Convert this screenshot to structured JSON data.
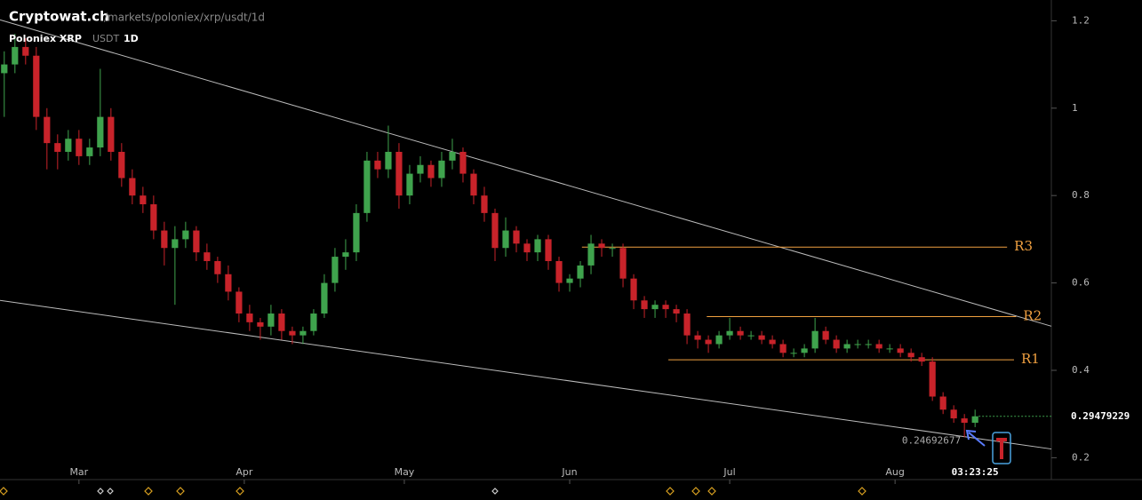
{
  "header": {
    "site": "Cryptowat.ch",
    "path": "/markets/poloniex/xrp/usdt/1d",
    "exchange_pair": "Poloniex XRP",
    "quote": "USDT",
    "period": "1D"
  },
  "chart_data": {
    "type": "candlestick",
    "x": [
      -14,
      -12,
      -10,
      -8,
      -6,
      -4,
      -2,
      0,
      2,
      4,
      6,
      8,
      10,
      12,
      14,
      16,
      18,
      20,
      22,
      24,
      26,
      28,
      30,
      32,
      34,
      36,
      38,
      40,
      42,
      44,
      46,
      48,
      50,
      52,
      54,
      56,
      58,
      60,
      62,
      64,
      66,
      68,
      70,
      72,
      74,
      76,
      78,
      80,
      82,
      84,
      86,
      88,
      90,
      92,
      94,
      96,
      98,
      100,
      102,
      104,
      106,
      108,
      110,
      112,
      114,
      116,
      118,
      120,
      122,
      124,
      126,
      128,
      130,
      132,
      134,
      136,
      138,
      140,
      142,
      144,
      146,
      148,
      150,
      152,
      154,
      156,
      158,
      160,
      162,
      164,
      166,
      168
    ],
    "open": [
      1.08,
      1.1,
      1.14,
      1.12,
      0.98,
      0.92,
      0.9,
      0.93,
      0.89,
      0.91,
      0.98,
      0.9,
      0.84,
      0.8,
      0.78,
      0.72,
      0.68,
      0.7,
      0.72,
      0.67,
      0.65,
      0.62,
      0.58,
      0.53,
      0.51,
      0.5,
      0.53,
      0.49,
      0.48,
      0.49,
      0.53,
      0.6,
      0.66,
      0.67,
      0.76,
      0.88,
      0.86,
      0.9,
      0.8,
      0.85,
      0.87,
      0.84,
      0.88,
      0.9,
      0.85,
      0.8,
      0.76,
      0.68,
      0.72,
      0.69,
      0.67,
      0.7,
      0.65,
      0.6,
      0.61,
      0.64,
      0.69,
      0.68,
      0.68,
      0.61,
      0.56,
      0.54,
      0.55,
      0.54,
      0.53,
      0.48,
      0.47,
      0.46,
      0.48,
      0.49,
      0.48,
      0.48,
      0.47,
      0.46,
      0.44,
      0.44,
      0.45,
      0.49,
      0.47,
      0.45,
      0.46,
      0.46,
      0.46,
      0.45,
      0.45,
      0.44,
      0.43,
      0.42,
      0.34,
      0.31,
      0.29,
      0.28
    ],
    "high": [
      1.13,
      1.17,
      1.16,
      1.14,
      1.0,
      0.94,
      0.95,
      0.95,
      0.93,
      1.09,
      1.0,
      0.92,
      0.86,
      0.82,
      0.8,
      0.74,
      0.73,
      0.74,
      0.73,
      0.69,
      0.66,
      0.64,
      0.59,
      0.55,
      0.52,
      0.55,
      0.54,
      0.5,
      0.5,
      0.54,
      0.62,
      0.68,
      0.7,
      0.78,
      0.9,
      0.9,
      0.96,
      0.92,
      0.87,
      0.89,
      0.88,
      0.9,
      0.93,
      0.91,
      0.86,
      0.82,
      0.77,
      0.75,
      0.73,
      0.7,
      0.71,
      0.71,
      0.66,
      0.62,
      0.65,
      0.71,
      0.7,
      0.69,
      0.69,
      0.62,
      0.57,
      0.56,
      0.56,
      0.55,
      0.54,
      0.49,
      0.48,
      0.49,
      0.52,
      0.5,
      0.49,
      0.49,
      0.48,
      0.47,
      0.45,
      0.46,
      0.52,
      0.5,
      0.48,
      0.47,
      0.47,
      0.47,
      0.47,
      0.46,
      0.46,
      0.45,
      0.44,
      0.43,
      0.35,
      0.32,
      0.3,
      0.31
    ],
    "low": [
      0.98,
      1.08,
      1.1,
      0.95,
      0.86,
      0.86,
      0.88,
      0.87,
      0.87,
      0.89,
      0.88,
      0.82,
      0.78,
      0.76,
      0.7,
      0.64,
      0.55,
      0.68,
      0.65,
      0.63,
      0.6,
      0.56,
      0.51,
      0.49,
      0.47,
      0.48,
      0.47,
      0.46,
      0.46,
      0.48,
      0.52,
      0.58,
      0.63,
      0.65,
      0.74,
      0.84,
      0.84,
      0.77,
      0.78,
      0.83,
      0.82,
      0.82,
      0.86,
      0.83,
      0.78,
      0.74,
      0.65,
      0.66,
      0.67,
      0.65,
      0.65,
      0.63,
      0.58,
      0.58,
      0.59,
      0.62,
      0.66,
      0.66,
      0.59,
      0.54,
      0.52,
      0.52,
      0.52,
      0.51,
      0.46,
      0.45,
      0.44,
      0.45,
      0.47,
      0.47,
      0.47,
      0.46,
      0.45,
      0.43,
      0.43,
      0.43,
      0.44,
      0.46,
      0.44,
      0.44,
      0.45,
      0.45,
      0.44,
      0.44,
      0.43,
      0.42,
      0.41,
      0.33,
      0.3,
      0.28,
      0.24692677,
      0.27
    ],
    "close": [
      1.1,
      1.14,
      1.12,
      0.98,
      0.92,
      0.9,
      0.93,
      0.89,
      0.91,
      0.98,
      0.9,
      0.84,
      0.8,
      0.78,
      0.72,
      0.68,
      0.7,
      0.72,
      0.67,
      0.65,
      0.62,
      0.58,
      0.53,
      0.51,
      0.5,
      0.53,
      0.49,
      0.48,
      0.49,
      0.53,
      0.6,
      0.66,
      0.67,
      0.76,
      0.88,
      0.86,
      0.9,
      0.8,
      0.85,
      0.87,
      0.84,
      0.88,
      0.9,
      0.85,
      0.8,
      0.76,
      0.68,
      0.72,
      0.69,
      0.67,
      0.7,
      0.65,
      0.6,
      0.61,
      0.64,
      0.69,
      0.68,
      0.68,
      0.61,
      0.56,
      0.54,
      0.55,
      0.54,
      0.53,
      0.48,
      0.47,
      0.46,
      0.48,
      0.49,
      0.48,
      0.48,
      0.47,
      0.46,
      0.44,
      0.44,
      0.45,
      0.49,
      0.47,
      0.45,
      0.46,
      0.46,
      0.46,
      0.45,
      0.45,
      0.44,
      0.43,
      0.42,
      0.34,
      0.31,
      0.29,
      0.28,
      0.29479229
    ],
    "up_color": "#3fa34d",
    "down_color": "#c8232a",
    "xlim": [
      -14.8,
      182.3
    ],
    "xticks": [
      {
        "value": 0,
        "label": "Mar"
      },
      {
        "value": 31,
        "label": "Apr"
      },
      {
        "value": 61,
        "label": "May"
      },
      {
        "value": 92,
        "label": "Jun"
      },
      {
        "value": 122,
        "label": "Jul"
      },
      {
        "value": 153,
        "label": "Aug"
      }
    ],
    "ylim": [
      0.15,
      1.2475
    ],
    "yticks": [
      0.2,
      0.4,
      0.6,
      0.8,
      1,
      1.2
    ],
    "time_label": "03:23:25",
    "trendlines": [
      {
        "x": [
          -14.8,
          182.3
        ],
        "y": [
          1.202,
          0.501
        ],
        "color": "#bbbbbb"
      },
      {
        "x": [
          -14.8,
          182.3
        ],
        "y": [
          0.56,
          0.22
        ],
        "color": "#bbbbbb"
      }
    ],
    "levels": [
      {
        "label": "R3",
        "value": 0.682,
        "x": [
          94.3,
          174
        ]
      },
      {
        "label": "R2",
        "value": 0.523,
        "x": [
          117.7,
          175.7
        ]
      },
      {
        "label": "R1",
        "value": 0.424,
        "x": [
          110.5,
          175.3
        ]
      }
    ],
    "level_color": "#f0a040"
  }
}
